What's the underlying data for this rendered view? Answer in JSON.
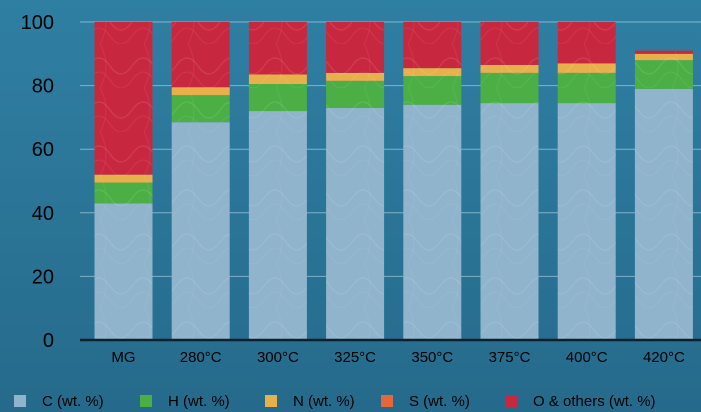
{
  "chart_data": {
    "type": "bar",
    "stacked": true,
    "categories": [
      "MG",
      "280°C",
      "300°C",
      "325°C",
      "350°C",
      "375°C",
      "400°C",
      "420°C"
    ],
    "series": [
      {
        "name": "C (wt. %)",
        "color": "#8fb4cc",
        "values": [
          43,
          68.5,
          72,
          73,
          74,
          74.5,
          74.5,
          79
        ]
      },
      {
        "name": "H (wt. %)",
        "color": "#4caf45",
        "values": [
          6.5,
          8.5,
          8.5,
          8.5,
          9,
          9.5,
          9.5,
          9
        ]
      },
      {
        "name": "N (wt. %)",
        "color": "#e8b04a",
        "values": [
          2.5,
          2.5,
          3,
          2.5,
          2.5,
          2.5,
          3,
          2
        ]
      },
      {
        "name": "S (wt. %)",
        "color": "#e5673a",
        "values": [
          0,
          0,
          0,
          0,
          0,
          0,
          0,
          0
        ]
      },
      {
        "name": "O & others (wt. %)",
        "color": "#c8283f",
        "values": [
          48,
          20.5,
          16.5,
          16,
          14.5,
          13.5,
          13,
          1
        ]
      }
    ],
    "yticks": [
      0,
      20,
      40,
      60,
      80,
      100
    ],
    "ylim": [
      0,
      100
    ],
    "grid": true,
    "legend_position": "bottom"
  }
}
